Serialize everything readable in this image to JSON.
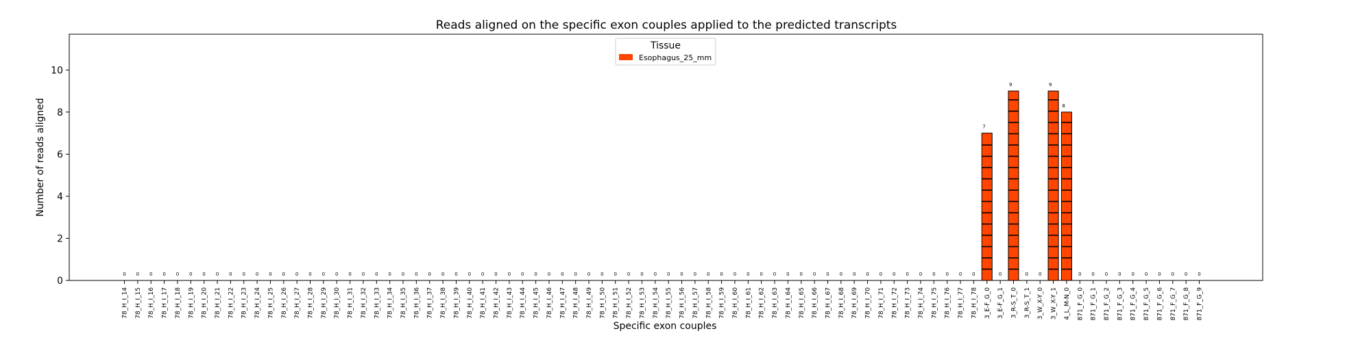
{
  "chart_data": {
    "type": "bar",
    "title": "Reads aligned on the specific exon couples applied to the predicted transcripts",
    "xlabel": "Specific exon couples",
    "ylabel": "Number of reads aligned",
    "ylim": [
      0,
      11.7
    ],
    "yticks": [
      0,
      2,
      4,
      6,
      8,
      10
    ],
    "grid": false,
    "legend": {
      "title": "Tissue",
      "placement": "top-center"
    },
    "categories": [
      "78_H_I_14",
      "78_H_I_15",
      "78_H_I_16",
      "78_H_I_17",
      "78_H_I_18",
      "78_H_I_19",
      "78_H_I_20",
      "78_H_I_21",
      "78_H_I_22",
      "78_H_I_23",
      "78_H_I_24",
      "78_H_I_25",
      "78_H_I_26",
      "78_H_I_27",
      "78_H_I_28",
      "78_H_I_29",
      "78_H_I_30",
      "78_H_I_31",
      "78_H_I_32",
      "78_H_I_33",
      "78_H_I_34",
      "78_H_I_35",
      "78_H_I_36",
      "78_H_I_37",
      "78_H_I_38",
      "78_H_I_39",
      "78_H_I_40",
      "78_H_I_41",
      "78_H_I_42",
      "78_H_I_43",
      "78_H_I_44",
      "78_H_I_45",
      "78_H_I_46",
      "78_H_I_47",
      "78_H_I_48",
      "78_H_I_49",
      "78_H_I_50",
      "78_H_I_51",
      "78_H_I_52",
      "78_H_I_53",
      "78_H_I_54",
      "78_H_I_55",
      "78_H_I_56",
      "78_H_I_57",
      "78_H_I_58",
      "78_H_I_59",
      "78_H_I_60",
      "78_H_I_61",
      "78_H_I_62",
      "78_H_I_63",
      "78_H_I_64",
      "78_H_I_65",
      "78_H_I_66",
      "78_H_I_67",
      "78_H_I_68",
      "78_H_I_69",
      "78_H_I_70",
      "78_H_I_71",
      "78_H_I_72",
      "78_H_I_73",
      "78_H_I_74",
      "78_H_I_75",
      "78_H_I_76",
      "78_H_I_77",
      "78_H_I_78",
      "3_E-F_G_0",
      "3_E-F_G_1",
      "3_R-S_T_0",
      "3_R-S_T_1",
      "3_W_X-Y_0",
      "3_W_X-Y_1",
      "4_L_M-N_0",
      "871_F_G_0",
      "871_F_G_1",
      "871_F_G_2",
      "871_F_G_3",
      "871_F_G_4",
      "871_F_G_5",
      "871_F_G_6",
      "871_F_G_7",
      "871_F_G_8",
      "871_F_G_9"
    ],
    "series": [
      {
        "name": "Esophagus_25_mm",
        "color": "#ff4500",
        "values": [
          0,
          0,
          0,
          0,
          0,
          0,
          0,
          0,
          0,
          0,
          0,
          0,
          0,
          0,
          0,
          0,
          0,
          0,
          0,
          0,
          0,
          0,
          0,
          0,
          0,
          0,
          0,
          0,
          0,
          0,
          0,
          0,
          0,
          0,
          0,
          0,
          0,
          0,
          0,
          0,
          0,
          0,
          0,
          0,
          0,
          0,
          0,
          0,
          0,
          0,
          0,
          0,
          0,
          0,
          0,
          0,
          0,
          0,
          0,
          0,
          0,
          0,
          0,
          0,
          0,
          7,
          0,
          9,
          0,
          0,
          9,
          8,
          0,
          0,
          0,
          0,
          0,
          0,
          0,
          0,
          0,
          0
        ]
      }
    ]
  }
}
